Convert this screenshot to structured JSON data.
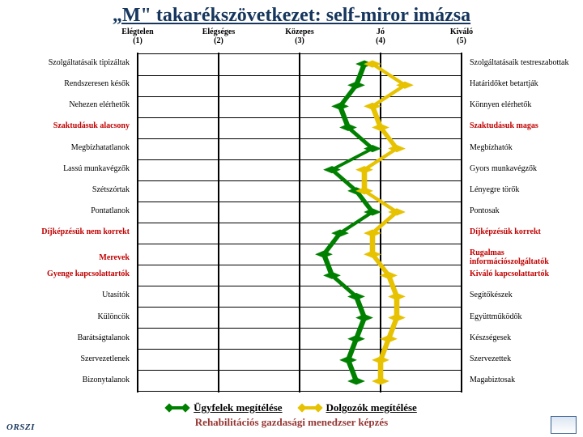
{
  "title": "„M\" takarékszövetkezet: self-miror imázsa",
  "columns": [
    {
      "label": "Elégtelen",
      "num": "(1)"
    },
    {
      "label": "Elégséges",
      "num": "(2)"
    },
    {
      "label": "Közepes",
      "num": "(3)"
    },
    {
      "label": "Jó",
      "num": "(4)"
    },
    {
      "label": "Kiváló",
      "num": "(5)"
    }
  ],
  "rows": [
    {
      "left": "Szolgáltatásaik tipizáltak",
      "right": "Szolgáltatásaik testreszabottak",
      "red": false
    },
    {
      "left": "Rendszeresen késők",
      "right": "Határidőket betartják",
      "red": false
    },
    {
      "left": "Nehezen elérhetők",
      "right": "Könnyen elérhetők",
      "red": false
    },
    {
      "left": "Szaktudásuk alacsony",
      "right": "Szaktudásuk magas",
      "red": true
    },
    {
      "left": "Megbízhatatlanok",
      "right": "Megbízhatók",
      "red": false
    },
    {
      "left": "Lassú munkavégzők",
      "right": "Gyors munkavégzők",
      "red": false
    },
    {
      "left": "Szétszórtak",
      "right": "Lényegre törők",
      "red": false
    },
    {
      "left": "Pontatlanok",
      "right": "Pontosak",
      "red": false
    },
    {
      "left": "Díjképzésük nem korrekt",
      "right": "Díjképzésük korrekt",
      "red": true
    },
    {
      "left": "Merevek",
      "right": "Rugalmas információszolgáltatók",
      "red": true
    },
    {
      "left": "Gyenge kapcsolattartók",
      "right": "Kiváló kapcsolattartók",
      "red": true
    },
    {
      "left": "Utasítók",
      "right": "Segítőkészek",
      "red": false
    },
    {
      "left": "Különcök",
      "right": "Együttműködők",
      "red": false
    },
    {
      "left": "Barátságtalanok",
      "right": "Készségesek",
      "red": false
    },
    {
      "left": "Szervezetlenek",
      "right": "Szervezettek",
      "red": false
    },
    {
      "left": "Bizonytalanok",
      "right": "Magabiztosak",
      "red": false
    }
  ],
  "series": {
    "green": {
      "color": "#008000",
      "label": "Ügyfelek megítélése",
      "values": [
        3.8,
        3.7,
        3.5,
        3.6,
        3.9,
        3.4,
        3.7,
        3.9,
        3.5,
        3.3,
        3.4,
        3.7,
        3.8,
        3.7,
        3.6,
        3.7
      ]
    },
    "yellow": {
      "color": "#e6c200",
      "label": "Dolgozók megítélése",
      "values": [
        3.9,
        4.3,
        3.9,
        4.0,
        4.2,
        3.8,
        3.8,
        4.2,
        3.9,
        3.9,
        4.1,
        4.2,
        4.2,
        4.1,
        4.0,
        4.0
      ]
    }
  },
  "footer": "Rehabilitációs gazdasági menedzser képzés",
  "logo_left": "ORSZI",
  "grid_color": "#000000",
  "line_width": 3,
  "marker_size": 7
}
